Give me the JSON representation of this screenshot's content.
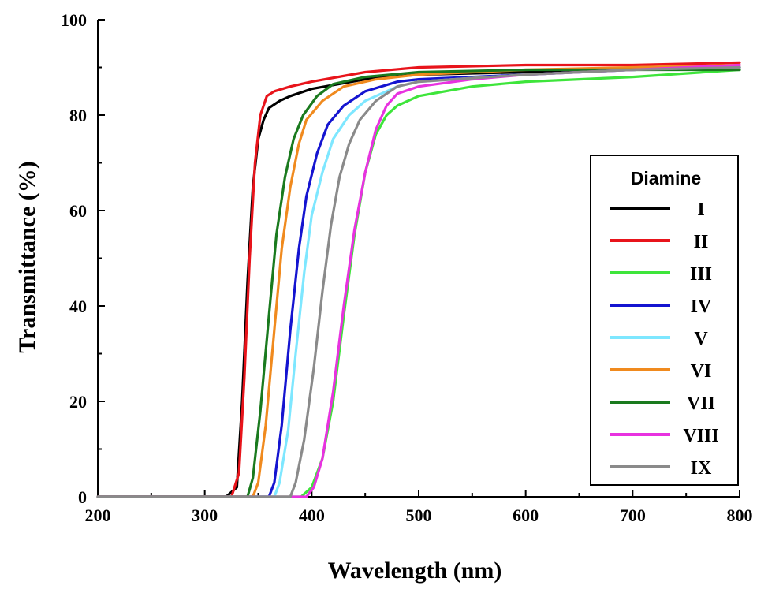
{
  "chart_data": {
    "type": "line",
    "title": "",
    "xlabel": "Wavelength (nm)",
    "ylabel": "Transmittance (%)",
    "xlim": [
      200,
      800
    ],
    "ylim": [
      0,
      100
    ],
    "x_ticks": [
      200,
      300,
      400,
      500,
      600,
      700,
      800
    ],
    "y_ticks": [
      0,
      20,
      40,
      60,
      80,
      100
    ],
    "grid": false,
    "legend": {
      "title": "Diamine",
      "placement": "right"
    },
    "series": [
      {
        "name": "I",
        "color": "#000000",
        "points": [
          [
            200,
            0
          ],
          [
            320,
            0
          ],
          [
            330,
            2
          ],
          [
            335,
            20
          ],
          [
            340,
            45
          ],
          [
            345,
            65
          ],
          [
            350,
            75
          ],
          [
            355,
            79
          ],
          [
            360,
            81.5
          ],
          [
            370,
            83
          ],
          [
            380,
            84
          ],
          [
            400,
            85.5
          ],
          [
            450,
            87.5
          ],
          [
            500,
            88.5
          ],
          [
            600,
            89
          ],
          [
            700,
            89.5
          ],
          [
            800,
            90
          ]
        ]
      },
      {
        "name": "II",
        "color": "#e8141b",
        "points": [
          [
            200,
            0
          ],
          [
            325,
            0
          ],
          [
            332,
            5
          ],
          [
            337,
            25
          ],
          [
            342,
            50
          ],
          [
            347,
            70
          ],
          [
            352,
            80
          ],
          [
            358,
            84
          ],
          [
            365,
            85
          ],
          [
            380,
            86
          ],
          [
            400,
            87
          ],
          [
            450,
            89
          ],
          [
            500,
            90
          ],
          [
            600,
            90.5
          ],
          [
            700,
            90.5
          ],
          [
            800,
            91
          ]
        ]
      },
      {
        "name": "III",
        "color": "#3ee53b",
        "points": [
          [
            200,
            0
          ],
          [
            390,
            0
          ],
          [
            400,
            2
          ],
          [
            410,
            8
          ],
          [
            420,
            20
          ],
          [
            430,
            38
          ],
          [
            440,
            55
          ],
          [
            450,
            68
          ],
          [
            460,
            76
          ],
          [
            470,
            80
          ],
          [
            480,
            82
          ],
          [
            500,
            84
          ],
          [
            550,
            86
          ],
          [
            600,
            87
          ],
          [
            700,
            88
          ],
          [
            800,
            89.5
          ]
        ]
      },
      {
        "name": "IV",
        "color": "#1414d0",
        "points": [
          [
            200,
            0
          ],
          [
            360,
            0
          ],
          [
            365,
            3
          ],
          [
            372,
            15
          ],
          [
            380,
            35
          ],
          [
            388,
            52
          ],
          [
            395,
            63
          ],
          [
            405,
            72
          ],
          [
            415,
            78
          ],
          [
            430,
            82
          ],
          [
            450,
            85
          ],
          [
            480,
            87
          ],
          [
            500,
            87.5
          ],
          [
            600,
            88.5
          ],
          [
            700,
            89.5
          ],
          [
            800,
            90
          ]
        ]
      },
      {
        "name": "V",
        "color": "#7ee7ff",
        "points": [
          [
            200,
            0
          ],
          [
            365,
            0
          ],
          [
            370,
            3
          ],
          [
            378,
            14
          ],
          [
            385,
            30
          ],
          [
            393,
            47
          ],
          [
            400,
            59
          ],
          [
            410,
            68
          ],
          [
            420,
            75
          ],
          [
            435,
            80
          ],
          [
            450,
            83
          ],
          [
            480,
            86
          ],
          [
            500,
            87
          ],
          [
            600,
            88.5
          ],
          [
            700,
            89.5
          ],
          [
            800,
            90
          ]
        ]
      },
      {
        "name": "VI",
        "color": "#f08a1e",
        "points": [
          [
            200,
            0
          ],
          [
            345,
            0
          ],
          [
            350,
            3
          ],
          [
            357,
            15
          ],
          [
            365,
            35
          ],
          [
            372,
            52
          ],
          [
            380,
            65
          ],
          [
            388,
            74
          ],
          [
            395,
            79
          ],
          [
            410,
            83
          ],
          [
            430,
            86
          ],
          [
            460,
            87.5
          ],
          [
            500,
            88.5
          ],
          [
            600,
            89.5
          ],
          [
            700,
            90
          ],
          [
            800,
            90.5
          ]
        ]
      },
      {
        "name": "VII",
        "color": "#1a7a1e",
        "points": [
          [
            200,
            0
          ],
          [
            340,
            0
          ],
          [
            345,
            4
          ],
          [
            352,
            18
          ],
          [
            360,
            38
          ],
          [
            367,
            55
          ],
          [
            375,
            67
          ],
          [
            383,
            75
          ],
          [
            392,
            80
          ],
          [
            405,
            84
          ],
          [
            420,
            86.5
          ],
          [
            450,
            88
          ],
          [
            500,
            89
          ],
          [
            600,
            89.5
          ],
          [
            700,
            89.5
          ],
          [
            800,
            89.5
          ]
        ]
      },
      {
        "name": "VIII",
        "color": "#e832e0",
        "points": [
          [
            200,
            0
          ],
          [
            395,
            0
          ],
          [
            402,
            2
          ],
          [
            410,
            8
          ],
          [
            420,
            22
          ],
          [
            430,
            40
          ],
          [
            440,
            56
          ],
          [
            450,
            68
          ],
          [
            460,
            77
          ],
          [
            470,
            82
          ],
          [
            480,
            84.5
          ],
          [
            500,
            86
          ],
          [
            550,
            87.5
          ],
          [
            600,
            88.5
          ],
          [
            700,
            89.5
          ],
          [
            800,
            90.5
          ]
        ]
      },
      {
        "name": "IX",
        "color": "#8a8a8a",
        "points": [
          [
            200,
            0
          ],
          [
            380,
            0
          ],
          [
            385,
            3
          ],
          [
            393,
            12
          ],
          [
            402,
            27
          ],
          [
            410,
            43
          ],
          [
            418,
            57
          ],
          [
            426,
            67
          ],
          [
            435,
            74
          ],
          [
            445,
            79
          ],
          [
            460,
            83
          ],
          [
            480,
            86
          ],
          [
            500,
            87
          ],
          [
            600,
            88.5
          ],
          [
            700,
            89.5
          ],
          [
            800,
            90
          ]
        ]
      }
    ]
  }
}
